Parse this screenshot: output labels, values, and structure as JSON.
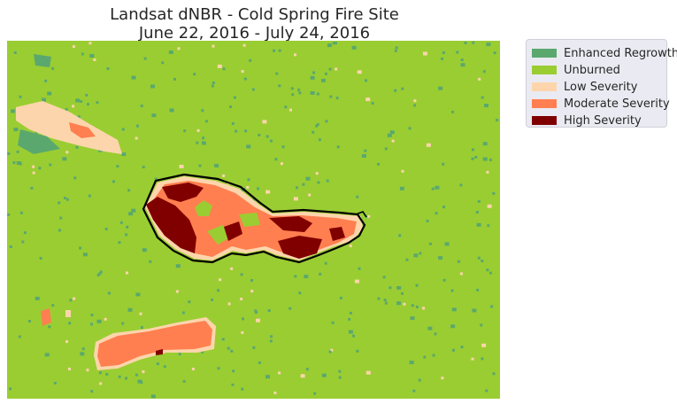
{
  "map": {
    "title_line1": "Landsat dNBR - Cold Spring Fire Site",
    "title_line2": "June 22, 2016 - July 24, 2016",
    "background_class": "Unburned",
    "fire_perimeter_color": "#000000"
  },
  "legend": {
    "placement": "outside upper-right",
    "items": [
      {
        "label": "Enhanced Regrowth",
        "color": "#5aa86e"
      },
      {
        "label": "Unburned",
        "color": "#9acd32"
      },
      {
        "label": "Low Severity",
        "color": "#fdd5ac"
      },
      {
        "label": "Moderate Severity",
        "color": "#ff7f50"
      },
      {
        "label": "High Severity",
        "color": "#800000"
      }
    ]
  }
}
